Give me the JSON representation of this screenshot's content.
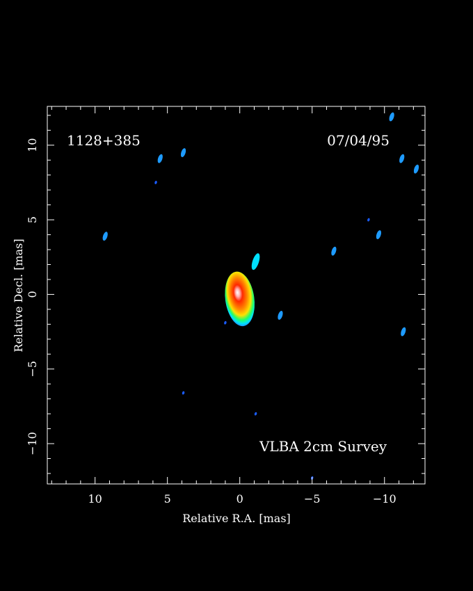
{
  "chart_data": {
    "type": "heatmap",
    "title": "",
    "source_name": "1128+385",
    "date": "07/04/95",
    "survey": "VLBA 2cm Survey",
    "xlabel": "Relative R.A. [mas]",
    "ylabel": "Relative Decl. [mas]",
    "xlim": [
      13.3,
      -12.8
    ],
    "ylim": [
      -12.7,
      12.6
    ],
    "x_ticks": [
      10,
      5,
      0,
      -5,
      -10
    ],
    "y_ticks": [
      10,
      5,
      0,
      -5,
      -10
    ],
    "x_tick_labels": [
      "10",
      "5",
      "0",
      "−5",
      "−10"
    ],
    "y_tick_labels": [
      "10",
      "5",
      "0",
      "−5",
      "−10"
    ],
    "x_minor_step": 1,
    "y_minor_step": 1,
    "grid": false,
    "background": "#000000",
    "frame_color": "#ffffff",
    "colormap": [
      {
        "level": 0.05,
        "color": "#1a5cff"
      },
      {
        "level": 0.1,
        "color": "#1e9bff"
      },
      {
        "level": 0.2,
        "color": "#00e0ff"
      },
      {
        "level": 0.3,
        "color": "#22ff66"
      },
      {
        "level": 0.45,
        "color": "#ffe000"
      },
      {
        "level": 0.6,
        "color": "#ff8800"
      },
      {
        "level": 0.75,
        "color": "#ff2800"
      },
      {
        "level": 0.9,
        "color": "#ffb4b4"
      },
      {
        "level": 1.0,
        "color": "#ffffff"
      }
    ],
    "core": {
      "x": 0.0,
      "y": -0.3,
      "peak": 1.0,
      "extent_x_mas": 1.0,
      "extent_y_mas": 1.9
    },
    "features": [
      {
        "x": -1.1,
        "y": 2.2,
        "level": 0.2
      },
      {
        "x": -2.8,
        "y": -1.4,
        "level": 0.1
      },
      {
        "x": 1.0,
        "y": -1.9,
        "level": 0.05
      },
      {
        "x": 5.5,
        "y": 9.1,
        "level": 0.1
      },
      {
        "x": 3.9,
        "y": 9.5,
        "level": 0.1
      },
      {
        "x": 5.8,
        "y": 7.5,
        "level": 0.05
      },
      {
        "x": 9.3,
        "y": 3.9,
        "level": 0.1
      },
      {
        "x": -6.5,
        "y": 2.9,
        "level": 0.1
      },
      {
        "x": -8.9,
        "y": 5.0,
        "level": 0.05
      },
      {
        "x": -9.6,
        "y": 4.0,
        "level": 0.1
      },
      {
        "x": -10.5,
        "y": 11.9,
        "level": 0.1
      },
      {
        "x": -11.2,
        "y": 9.1,
        "level": 0.1
      },
      {
        "x": -12.2,
        "y": 8.4,
        "level": 0.1
      },
      {
        "x": -11.3,
        "y": -2.5,
        "level": 0.1
      },
      {
        "x": 3.9,
        "y": -6.6,
        "level": 0.05
      },
      {
        "x": -1.1,
        "y": -8.0,
        "level": 0.05
      },
      {
        "x": -5.0,
        "y": -12.3,
        "level": 0.05
      }
    ]
  }
}
